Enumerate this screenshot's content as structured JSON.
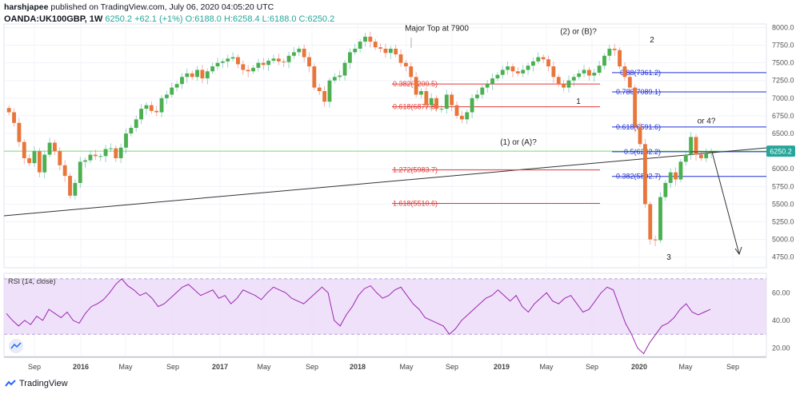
{
  "header": {
    "publisher": "harshjapee",
    "published_text": "published on TradingView.com, July 06, 2020 04:05:20 UTC",
    "symbol": "OANDA:UK100GBP, 1W",
    "last": "6250.2",
    "change": "+62.1 (+1%)",
    "ohlc": "O:6188.0 H:6258.4 L:6188.0 C:6250.2"
  },
  "footer": {
    "brand": "TradingView"
  },
  "colors": {
    "up": "#26a69a",
    "down": "#ef5350",
    "upbody": "#4caf50",
    "downbody": "#e8763a",
    "rsi": "#9c27b0",
    "fib_blue": "#1e2fd6",
    "fib_red": "#e53935",
    "hline": "#7bd87b"
  },
  "chart_data": [
    {
      "type": "candlestick",
      "title": "",
      "x_ticks": [
        "Sep",
        "2016",
        "May",
        "Sep",
        "2017",
        "May",
        "Sep",
        "2018",
        "May",
        "Sep",
        "2019",
        "May",
        "Sep",
        "2020",
        "May",
        "Sep"
      ],
      "y_ticks": [
        8000,
        7750,
        7500,
        7250,
        7000,
        6750,
        6500,
        6250,
        6000,
        5750,
        5500,
        5250,
        5000,
        4750
      ],
      "ylim": [
        4600,
        8050
      ],
      "last_price_label": "6250.2",
      "price_path": [
        6800,
        6650,
        6380,
        6150,
        6080,
        6250,
        5950,
        6200,
        6370,
        6250,
        6050,
        5900,
        5620,
        5800,
        6100,
        6120,
        6200,
        6180,
        6180,
        6280,
        6290,
        6150,
        6300,
        6500,
        6580,
        6700,
        6850,
        6900,
        6820,
        6800,
        7000,
        7050,
        7150,
        7200,
        7300,
        7350,
        7300,
        7400,
        7280,
        7380,
        7450,
        7500,
        7520,
        7560,
        7580,
        7480,
        7400,
        7380,
        7430,
        7500,
        7470,
        7530,
        7560,
        7520,
        7510,
        7600,
        7650,
        7700,
        7580,
        7450,
        7150,
        7100,
        6950,
        7250,
        7300,
        7320,
        7500,
        7650,
        7700,
        7800,
        7870,
        7800,
        7720,
        7700,
        7640,
        7700,
        7620,
        7500,
        7450,
        7300,
        7050,
        7100,
        6900,
        7000,
        6850,
        6850,
        7050,
        6900,
        6750,
        6700,
        6800,
        7000,
        7050,
        7150,
        7200,
        7280,
        7330,
        7400,
        7450,
        7380,
        7350,
        7400,
        7460,
        7520,
        7580,
        7550,
        7450,
        7300,
        7200,
        7150,
        7250,
        7300,
        7350,
        7400,
        7320,
        7360,
        7460,
        7600,
        7700,
        7680,
        7450,
        7300,
        7150,
        6600,
        6350,
        5500,
        5000,
        4990,
        5600,
        5800,
        5950,
        5850,
        6100,
        6200,
        6450,
        6200,
        6150,
        6220,
        6250
      ],
      "annotations": [
        {
          "text": "Major Top at 7900",
          "price": 7900
        },
        {
          "text": "(2) or (B)?",
          "price": 7820
        },
        {
          "text": "2",
          "price": 7720
        },
        {
          "text": "1",
          "price": 7030
        },
        {
          "text": "(1) or (A)?",
          "price": 6500
        },
        {
          "text": "or 4?",
          "price": 6620
        },
        {
          "text": "3",
          "price": 4850
        }
      ],
      "fib_levels": [
        {
          "label": "0.382(7200.5)",
          "price": 7200.5,
          "color": "red"
        },
        {
          "label": "0.618(6877.8)",
          "price": 6877.8,
          "color": "red"
        },
        {
          "label": "1.272(5983.7)",
          "price": 5983.7,
          "color": "red"
        },
        {
          "label": "1.618(5510.6)",
          "price": 5510.6,
          "color": "red"
        },
        {
          "label": "0.88(7361.2)",
          "price": 7361.2,
          "color": "blue"
        },
        {
          "label": "0.786(7089.1)",
          "price": 7089.1,
          "color": "blue"
        },
        {
          "label": "0.618(6591.6)",
          "price": 6591.6,
          "color": "blue"
        },
        {
          "label": "0.5(6242.2)",
          "price": 6242.2,
          "color": "blue"
        },
        {
          "label": "0.382(5892.7)",
          "price": 5892.7,
          "color": "blue"
        }
      ]
    },
    {
      "type": "line",
      "title": "RSI (14, close)",
      "y_ticks": [
        60.0,
        40.0,
        20.0
      ],
      "band": [
        30,
        70
      ],
      "ylim": [
        14,
        74
      ],
      "values": [
        45,
        40,
        36,
        40,
        37,
        43,
        40,
        48,
        45,
        42,
        46,
        40,
        38,
        45,
        50,
        52,
        55,
        60,
        66,
        70,
        65,
        62,
        58,
        60,
        56,
        50,
        52,
        56,
        60,
        64,
        66,
        62,
        58,
        60,
        62,
        56,
        58,
        52,
        56,
        62,
        60,
        58,
        55,
        60,
        64,
        62,
        60,
        56,
        54,
        52,
        56,
        60,
        64,
        60,
        40,
        36,
        44,
        50,
        58,
        63,
        65,
        60,
        56,
        58,
        62,
        64,
        58,
        52,
        48,
        42,
        40,
        38,
        36,
        30,
        34,
        40,
        44,
        48,
        52,
        56,
        58,
        62,
        58,
        54,
        58,
        50,
        46,
        52,
        56,
        60,
        54,
        52,
        56,
        58,
        52,
        46,
        48,
        54,
        60,
        64,
        62,
        50,
        38,
        30,
        20,
        16,
        24,
        30,
        36,
        38,
        42,
        48,
        52,
        46,
        44,
        46,
        48
      ]
    }
  ]
}
